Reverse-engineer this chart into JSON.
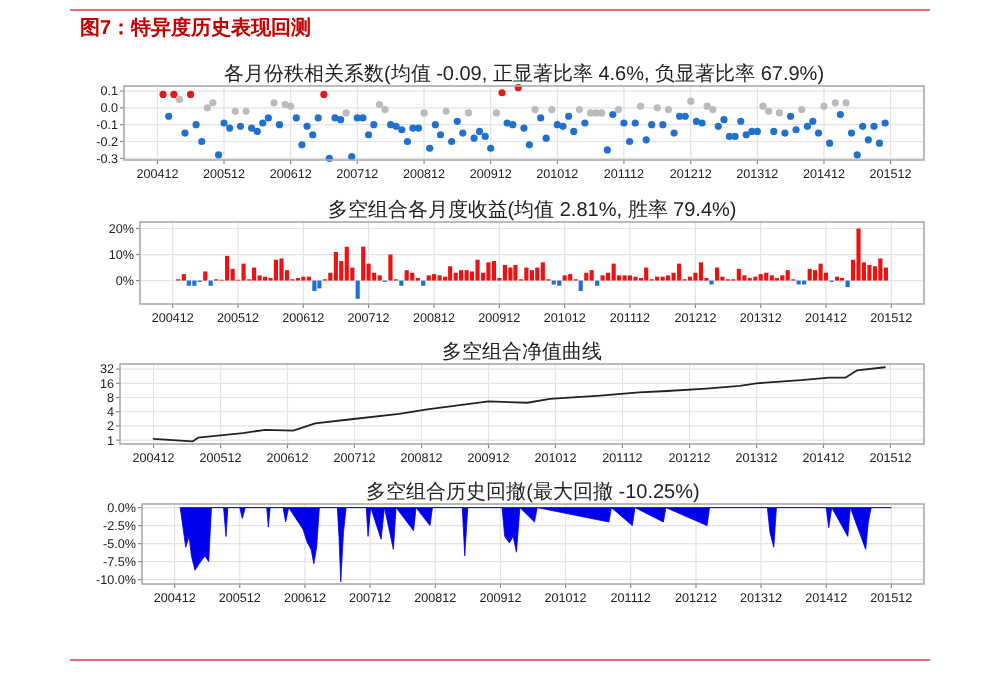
{
  "chart_data": [
    {
      "type": "other",
      "title": "图7：特异度历史表现回测"
    },
    {
      "type": "scatter",
      "title": "各月份秩相关系数(均值 -0.09, 正显著比率 4.6%, 负显著比率 67.9%)",
      "marker": "circle",
      "grid": true,
      "xlim": [
        "2004-06",
        "2016-06"
      ],
      "ylim": [
        -0.31,
        0.13
      ],
      "xticks": [
        {
          "value": "2004-12",
          "label": "200412"
        },
        {
          "value": "2005-12",
          "label": "200512"
        },
        {
          "value": "2006-12",
          "label": "200612"
        },
        {
          "value": "2007-12",
          "label": "200712"
        },
        {
          "value": "2008-12",
          "label": "200812"
        },
        {
          "value": "2009-12",
          "label": "200912"
        },
        {
          "value": "2010-12",
          "label": "201012"
        },
        {
          "value": "2011-12",
          "label": "201112"
        },
        {
          "value": "2012-12",
          "label": "201212"
        },
        {
          "value": "2013-12",
          "label": "201312"
        },
        {
          "value": "2014-12",
          "label": "201412"
        },
        {
          "value": "2015-12",
          "label": "201512"
        }
      ],
      "yticks": [
        0.1,
        {
          "value": 0,
          "label": "0.0"
        },
        -0.1,
        -0.2,
        -0.3
      ],
      "x": [
        "2005-01",
        "2005-02",
        "2005-03",
        "2005-04",
        "2005-05",
        "2005-06",
        "2005-07",
        "2005-08",
        "2005-09",
        "2005-10",
        "2005-11",
        "2005-12",
        "2006-01",
        "2006-02",
        "2006-03",
        "2006-04",
        "2006-05",
        "2006-06",
        "2006-07",
        "2006-08",
        "2006-09",
        "2006-10",
        "2006-11",
        "2006-12",
        "2007-01",
        "2007-02",
        "2007-03",
        "2007-04",
        "2007-05",
        "2007-06",
        "2007-07",
        "2007-08",
        "2007-09",
        "2007-10",
        "2007-11",
        "2007-12",
        "2008-01",
        "2008-02",
        "2008-03",
        "2008-04",
        "2008-05",
        "2008-06",
        "2008-07",
        "2008-08",
        "2008-09",
        "2008-10",
        "2008-11",
        "2008-12",
        "2009-01",
        "2009-02",
        "2009-03",
        "2009-04",
        "2009-05",
        "2009-06",
        "2009-07",
        "2009-08",
        "2009-09",
        "2009-10",
        "2009-11",
        "2009-12",
        "2010-01",
        "2010-02",
        "2010-03",
        "2010-04",
        "2010-05",
        "2010-06",
        "2010-07",
        "2010-08",
        "2010-09",
        "2010-10",
        "2010-11",
        "2010-12",
        "2011-01",
        "2011-02",
        "2011-03",
        "2011-04",
        "2011-05",
        "2011-06",
        "2011-07",
        "2011-08",
        "2011-09",
        "2011-10",
        "2011-11",
        "2011-12",
        "2012-01",
        "2012-02",
        "2012-03",
        "2012-04",
        "2012-05",
        "2012-06",
        "2012-07",
        "2012-08",
        "2012-09",
        "2012-10",
        "2012-11",
        "2012-12",
        "2013-01",
        "2013-02",
        "2013-03",
        "2013-04",
        "2013-05",
        "2013-06",
        "2013-07",
        "2013-08",
        "2013-09",
        "2013-10",
        "2013-11",
        "2013-12",
        "2014-01",
        "2014-02",
        "2014-03",
        "2014-04",
        "2014-05",
        "2014-06",
        "2014-07",
        "2014-08",
        "2014-09",
        "2014-10",
        "2014-11",
        "2014-12",
        "2015-01",
        "2015-02",
        "2015-03",
        "2015-04",
        "2015-05",
        "2015-06",
        "2015-07",
        "2015-08",
        "2015-09",
        "2015-10",
        "2015-11"
      ],
      "values": [
        0.08,
        -0.05,
        0.08,
        0.05,
        -0.15,
        0.08,
        -0.1,
        -0.2,
        0,
        0.03,
        -0.28,
        -0.09,
        -0.12,
        -0.02,
        -0.11,
        -0.02,
        -0.12,
        -0.14,
        -0.09,
        -0.06,
        0.03,
        -0.1,
        0.02,
        0.01,
        -0.06,
        -0.22,
        -0.11,
        -0.16,
        -0.06,
        0.08,
        -0.3,
        -0.06,
        -0.07,
        -0.03,
        -0.29,
        -0.06,
        -0.06,
        -0.16,
        -0.1,
        0.02,
        -0.01,
        -0.1,
        -0.11,
        -0.13,
        -0.2,
        -0.12,
        -0.12,
        -0.03,
        -0.24,
        -0.1,
        -0.16,
        -0.02,
        -0.2,
        -0.08,
        -0.15,
        -0.03,
        -0.18,
        -0.14,
        -0.17,
        -0.24,
        -0.03,
        0.09,
        -0.09,
        -0.1,
        0.12,
        -0.12,
        -0.22,
        -0.01,
        -0.06,
        -0.18,
        -0.01,
        -0.1,
        -0.11,
        -0.05,
        -0.14,
        -0.01,
        -0.09,
        -0.03,
        -0.03,
        -0.03,
        -0.25,
        -0.04,
        -0.01,
        -0.09,
        -0.2,
        -0.09,
        0.01,
        -0.19,
        -0.1,
        0,
        -0.1,
        -0.01,
        -0.15,
        -0.05,
        -0.05,
        0.04,
        -0.08,
        -0.09,
        0.01,
        -0.01,
        -0.11,
        -0.07,
        -0.17,
        -0.17,
        -0.08,
        -0.16,
        -0.14,
        -0.14,
        0.01,
        -0.02,
        -0.14,
        -0.03,
        -0.15,
        -0.05,
        -0.13,
        -0.01,
        -0.11,
        -0.08,
        -0.15,
        0.01,
        -0.21,
        0.03,
        -0.04,
        0.03,
        -0.15,
        -0.28,
        -0.11,
        -0.19,
        -0.11,
        -0.21,
        -0.09
      ],
      "colors": [
        "#e31a1c",
        "#2070d0",
        "#e31a1c",
        "#bbbbbb",
        "#2070d0",
        "#e31a1c",
        "#2070d0",
        "#2070d0",
        "#bbbbbb",
        "#bbbbbb",
        "#2070d0",
        "#2070d0",
        "#2070d0",
        "#bbbbbb",
        "#2070d0",
        "#bbbbbb",
        "#2070d0",
        "#2070d0",
        "#2070d0",
        "#2070d0",
        "#bbbbbb",
        "#2070d0",
        "#bbbbbb",
        "#bbbbbb",
        "#2070d0",
        "#2070d0",
        "#2070d0",
        "#2070d0",
        "#2070d0",
        "#e31a1c",
        "#2070d0",
        "#2070d0",
        "#2070d0",
        "#bbbbbb",
        "#2070d0",
        "#2070d0",
        "#2070d0",
        "#2070d0",
        "#2070d0",
        "#bbbbbb",
        "#bbbbbb",
        "#2070d0",
        "#2070d0",
        "#2070d0",
        "#2070d0",
        "#2070d0",
        "#2070d0",
        "#bbbbbb",
        "#2070d0",
        "#2070d0",
        "#2070d0",
        "#bbbbbb",
        "#2070d0",
        "#2070d0",
        "#2070d0",
        "#bbbbbb",
        "#2070d0",
        "#2070d0",
        "#2070d0",
        "#2070d0",
        "#bbbbbb",
        "#e31a1c",
        "#2070d0",
        "#2070d0",
        "#e31a1c",
        "#2070d0",
        "#2070d0",
        "#bbbbbb",
        "#2070d0",
        "#2070d0",
        "#bbbbbb",
        "#2070d0",
        "#2070d0",
        "#2070d0",
        "#2070d0",
        "#bbbbbb",
        "#2070d0",
        "#bbbbbb",
        "#bbbbbb",
        "#bbbbbb",
        "#2070d0",
        "#2070d0",
        "#bbbbbb",
        "#2070d0",
        "#2070d0",
        "#2070d0",
        "#bbbbbb",
        "#2070d0",
        "#2070d0",
        "#bbbbbb",
        "#2070d0",
        "#bbbbbb",
        "#2070d0",
        "#2070d0",
        "#2070d0",
        "#bbbbbb",
        "#2070d0",
        "#2070d0",
        "#bbbbbb",
        "#bbbbbb",
        "#2070d0",
        "#2070d0",
        "#2070d0",
        "#2070d0",
        "#2070d0",
        "#2070d0",
        "#2070d0",
        "#2070d0",
        "#bbbbbb",
        "#bbbbbb",
        "#2070d0",
        "#bbbbbb",
        "#2070d0",
        "#2070d0",
        "#2070d0",
        "#bbbbbb",
        "#2070d0",
        "#2070d0",
        "#2070d0",
        "#bbbbbb",
        "#2070d0",
        "#bbbbbb",
        "#2070d0",
        "#bbbbbb",
        "#2070d0",
        "#2070d0",
        "#2070d0",
        "#2070d0",
        "#2070d0",
        "#2070d0",
        "#2070d0"
      ]
    },
    {
      "type": "bar",
      "title": "多空组合各月度收益(均值 2.81%, 胜率 79.4%)",
      "grid": true,
      "xlim": [
        "2004-06",
        "2016-06"
      ],
      "ylim": [
        -9,
        22.5
      ],
      "xticks": [
        {
          "value": "2004-12",
          "label": "200412"
        },
        {
          "value": "2005-12",
          "label": "200512"
        },
        {
          "value": "2006-12",
          "label": "200612"
        },
        {
          "value": "2007-12",
          "label": "200712"
        },
        {
          "value": "2008-12",
          "label": "200812"
        },
        {
          "value": "2009-12",
          "label": "200912"
        },
        {
          "value": "2010-12",
          "label": "201012"
        },
        {
          "value": "2011-12",
          "label": "201112"
        },
        {
          "value": "2012-12",
          "label": "201212"
        },
        {
          "value": "2013-12",
          "label": "201312"
        },
        {
          "value": "2014-12",
          "label": "201412"
        },
        {
          "value": "2015-12",
          "label": "201512"
        }
      ],
      "yticks": [
        {
          "value": 0,
          "label": "0%"
        },
        {
          "value": 10,
          "label": "10%"
        },
        {
          "value": 20,
          "label": "20%"
        }
      ],
      "x": [
        "2005-01",
        "2005-02",
        "2005-03",
        "2005-04",
        "2005-05",
        "2005-06",
        "2005-07",
        "2005-08",
        "2005-09",
        "2005-10",
        "2005-11",
        "2005-12",
        "2006-01",
        "2006-02",
        "2006-03",
        "2006-04",
        "2006-05",
        "2006-06",
        "2006-07",
        "2006-08",
        "2006-09",
        "2006-10",
        "2006-11",
        "2006-12",
        "2007-01",
        "2007-02",
        "2007-03",
        "2007-04",
        "2007-05",
        "2007-06",
        "2007-07",
        "2007-08",
        "2007-09",
        "2007-10",
        "2007-11",
        "2007-12",
        "2008-01",
        "2008-02",
        "2008-03",
        "2008-04",
        "2008-05",
        "2008-06",
        "2008-07",
        "2008-08",
        "2008-09",
        "2008-10",
        "2008-11",
        "2008-12",
        "2009-01",
        "2009-02",
        "2009-03",
        "2009-04",
        "2009-05",
        "2009-06",
        "2009-07",
        "2009-08",
        "2009-09",
        "2009-10",
        "2009-11",
        "2009-12",
        "2010-01",
        "2010-02",
        "2010-03",
        "2010-04",
        "2010-05",
        "2010-06",
        "2010-07",
        "2010-08",
        "2010-09",
        "2010-10",
        "2010-11",
        "2010-12",
        "2011-01",
        "2011-02",
        "2011-03",
        "2011-04",
        "2011-05",
        "2011-06",
        "2011-07",
        "2011-08",
        "2011-09",
        "2011-10",
        "2011-11",
        "2011-12",
        "2012-01",
        "2012-02",
        "2012-03",
        "2012-04",
        "2012-05",
        "2012-06",
        "2012-07",
        "2012-08",
        "2012-09",
        "2012-10",
        "2012-11",
        "2012-12",
        "2013-01",
        "2013-02",
        "2013-03",
        "2013-04",
        "2013-05",
        "2013-06",
        "2013-07",
        "2013-08",
        "2013-09",
        "2013-10",
        "2013-11",
        "2013-12",
        "2014-01",
        "2014-02",
        "2014-03",
        "2014-04",
        "2014-05",
        "2014-06",
        "2014-07",
        "2014-08",
        "2014-09",
        "2014-10",
        "2014-11",
        "2014-12",
        "2015-01",
        "2015-02",
        "2015-03",
        "2015-04",
        "2015-05",
        "2015-06",
        "2015-07",
        "2015-08",
        "2015-09",
        "2015-10",
        "2015-11"
      ],
      "values": [
        0.5,
        2.5,
        -2,
        -2,
        -0.5,
        3.5,
        -2,
        0.5,
        0.3,
        9.5,
        4.5,
        0.3,
        6.5,
        0.5,
        5,
        2,
        1.5,
        1,
        8,
        8.5,
        4,
        0.5,
        1,
        1.5,
        1.5,
        -4,
        -3,
        0.5,
        3,
        11,
        7.5,
        13,
        5,
        -7,
        13,
        6.5,
        3,
        2,
        -0.5,
        10,
        0.5,
        -2,
        4,
        3,
        1,
        -2,
        2,
        2.5,
        2,
        1.5,
        5.5,
        3,
        4,
        4,
        3.5,
        8,
        3,
        7,
        7.5,
        1,
        6,
        5,
        6,
        0.5,
        5,
        4,
        5,
        7,
        0.5,
        -1.5,
        -2,
        2,
        2.5,
        0.5,
        -4,
        3,
        4,
        -2,
        2,
        3,
        6.5,
        2,
        2,
        2,
        1.5,
        1,
        5,
        0.5,
        1.5,
        1.5,
        2,
        3,
        6.5,
        0.5,
        1.5,
        3,
        7,
        1,
        -1.5,
        5,
        1.5,
        0.5,
        0.5,
        4.5,
        2,
        1,
        1.5,
        2.5,
        3,
        2,
        1,
        2,
        4,
        0.5,
        -1.5,
        -1.5,
        4.5,
        4,
        6.5,
        3,
        -0.5,
        1.5,
        1,
        -2.5,
        8,
        20,
        7,
        6,
        5.5,
        8.5,
        5
      ],
      "colors": [
        "#ee1111",
        "#ee1111",
        "#1f6fd6",
        "#1f6fd6",
        "#1f6fd6",
        "#ee1111",
        "#1f6fd6",
        "#ee1111",
        "#ee1111",
        "#ee1111",
        "#ee1111",
        "#ee1111",
        "#ee1111",
        "#ee1111",
        "#ee1111",
        "#ee1111",
        "#ee1111",
        "#ee1111",
        "#ee1111",
        "#ee1111",
        "#ee1111",
        "#ee1111",
        "#ee1111",
        "#ee1111",
        "#ee1111",
        "#1f6fd6",
        "#1f6fd6",
        "#ee1111",
        "#ee1111",
        "#ee1111",
        "#ee1111",
        "#ee1111",
        "#ee1111",
        "#1f6fd6",
        "#ee1111",
        "#ee1111",
        "#ee1111",
        "#ee1111",
        "#1f6fd6",
        "#ee1111",
        "#ee1111",
        "#1f6fd6",
        "#ee1111",
        "#ee1111",
        "#ee1111",
        "#1f6fd6",
        "#ee1111",
        "#ee1111",
        "#ee1111",
        "#ee1111",
        "#ee1111",
        "#ee1111",
        "#ee1111",
        "#ee1111",
        "#ee1111",
        "#ee1111",
        "#ee1111",
        "#ee1111",
        "#ee1111",
        "#ee1111",
        "#ee1111",
        "#ee1111",
        "#ee1111",
        "#ee1111",
        "#ee1111",
        "#ee1111",
        "#ee1111",
        "#ee1111",
        "#ee1111",
        "#1f6fd6",
        "#1f6fd6",
        "#ee1111",
        "#ee1111",
        "#ee1111",
        "#1f6fd6",
        "#ee1111",
        "#ee1111",
        "#1f6fd6",
        "#ee1111",
        "#ee1111",
        "#ee1111",
        "#ee1111",
        "#ee1111",
        "#ee1111",
        "#ee1111",
        "#ee1111",
        "#ee1111",
        "#ee1111",
        "#ee1111",
        "#ee1111",
        "#ee1111",
        "#ee1111",
        "#ee1111",
        "#ee1111",
        "#ee1111",
        "#ee1111",
        "#ee1111",
        "#ee1111",
        "#1f6fd6",
        "#ee1111",
        "#ee1111",
        "#ee1111",
        "#ee1111",
        "#ee1111",
        "#ee1111",
        "#ee1111",
        "#ee1111",
        "#ee1111",
        "#ee1111",
        "#ee1111",
        "#ee1111",
        "#ee1111",
        "#ee1111",
        "#ee1111",
        "#1f6fd6",
        "#1f6fd6",
        "#ee1111",
        "#ee1111",
        "#ee1111",
        "#ee1111",
        "#1f6fd6",
        "#ee1111",
        "#ee1111",
        "#1f6fd6",
        "#ee1111",
        "#ee1111",
        "#ee1111",
        "#ee1111",
        "#ee1111",
        "#ee1111",
        "#ee1111"
      ]
    },
    {
      "type": "line",
      "title": "多空组合净值曲线",
      "grid": true,
      "log": "y",
      "color": "#222222",
      "xlim": [
        "2004-06",
        "2016-06"
      ],
      "ylim": [
        0.83,
        41
      ],
      "xticks": [
        {
          "value": "2004-12",
          "label": "200412"
        },
        {
          "value": "2005-12",
          "label": "200512"
        },
        {
          "value": "2006-12",
          "label": "200612"
        },
        {
          "value": "2007-12",
          "label": "200712"
        },
        {
          "value": "2008-12",
          "label": "200812"
        },
        {
          "value": "2009-12",
          "label": "200912"
        },
        {
          "value": "2010-12",
          "label": "201012"
        },
        {
          "value": "2011-12",
          "label": "201112"
        },
        {
          "value": "2012-12",
          "label": "201212"
        },
        {
          "value": "2013-12",
          "label": "201312"
        },
        {
          "value": "2014-12",
          "label": "201412"
        },
        {
          "value": "2015-12",
          "label": "201512"
        }
      ],
      "yticks": [
        1,
        2,
        4,
        8,
        16,
        32
      ],
      "x": [
        "2004-12",
        "2005-07",
        "2005-08",
        "2006-04",
        "2006-08",
        "2007-01",
        "2007-05",
        "2007-11",
        "2008-08",
        "2009-01",
        "2009-12",
        "2010-07",
        "2010-11",
        "2011-08",
        "2012-03",
        "2012-08",
        "2013-03",
        "2013-09",
        "2013-12",
        "2014-08",
        "2015-01",
        "2015-04",
        "2015-06",
        "2015-11"
      ],
      "values": [
        1.07,
        0.94,
        1.13,
        1.41,
        1.65,
        1.6,
        2.27,
        2.74,
        3.6,
        4.5,
        6.6,
        6.2,
        7.5,
        8.8,
        10.3,
        11,
        12.4,
        14.1,
        16,
        18.7,
        21.2,
        21.2,
        30,
        35
      ]
    },
    {
      "type": "area",
      "title": "多空组合历史回撤(最大回撤 -10.25%)",
      "grid": true,
      "color": "#0000ee",
      "xlim": [
        "2004-06",
        "2016-06"
      ],
      "ylim": [
        -10.6,
        0.5
      ],
      "xticks": [
        {
          "value": "2004-12",
          "label": "200412"
        },
        {
          "value": "2005-12",
          "label": "200512"
        },
        {
          "value": "2006-12",
          "label": "200612"
        },
        {
          "value": "2007-12",
          "label": "200712"
        },
        {
          "value": "2008-12",
          "label": "200812"
        },
        {
          "value": "2009-12",
          "label": "200912"
        },
        {
          "value": "2010-12",
          "label": "201012"
        },
        {
          "value": "2011-12",
          "label": "201112"
        },
        {
          "value": "2012-12",
          "label": "201212"
        },
        {
          "value": "2013-12",
          "label": "201312"
        },
        {
          "value": "2014-12",
          "label": "201412"
        },
        {
          "value": "2015-12",
          "label": "201512"
        }
      ],
      "yticks": [
        {
          "value": 0,
          "label": "0.0%"
        },
        {
          "value": -2.5,
          "label": "-2.5%"
        },
        {
          "value": -5,
          "label": "-5.0%"
        },
        {
          "value": -7.5,
          "label": "-7.5%"
        },
        {
          "value": -10,
          "label": "-10.0%"
        }
      ],
      "x": [
        "2005-01-01",
        "2005-02-01",
        "2005-02-20",
        "2005-03-05",
        "2005-03-25",
        "2005-04-20",
        "2005-05-20",
        "2005-06-10",
        "2005-06-25",
        "2005-09-01",
        "2005-09-15",
        "2005-09-25",
        "2005-12-01",
        "2005-12-15",
        "2006-01-01",
        "2006-05-01",
        "2006-05-10",
        "2006-05-20",
        "2006-08-01",
        "2006-08-15",
        "2006-09-01",
        "2006-11-20",
        "2006-12-15",
        "2007-01-05",
        "2007-01-20",
        "2007-02-05",
        "2007-02-20",
        "2007-06-01",
        "2007-06-10",
        "2007-06-20",
        "2007-07-05",
        "2007-07-20",
        "2007-11-10",
        "2007-11-20",
        "2007-12-05",
        "2008-02-01",
        "2008-02-20",
        "2008-04-10",
        "2008-04-25",
        "2008-08-01",
        "2008-08-15",
        "2008-11-01",
        "2008-11-15",
        "2009-05-01",
        "2009-05-15",
        "2009-06-01",
        "2009-12-10",
        "2009-12-25",
        "2010-01-20",
        "2010-02-10",
        "2010-03-01",
        "2010-03-20",
        "2010-06-10",
        "2010-06-25",
        "2011-08-01",
        "2011-08-15",
        "2011-12-10",
        "2011-12-25",
        "2012-06-01",
        "2012-06-15",
        "2013-02-01",
        "2013-02-15",
        "2014-01-05",
        "2014-01-20",
        "2014-02-10",
        "2014-02-25",
        "2014-12-01",
        "2014-12-15",
        "2015-01-01",
        "2015-04-01",
        "2015-04-15",
        "2015-07-10",
        "2015-07-25",
        "2015-08-10",
        "2015-11-30"
      ],
      "values": [
        0,
        -5.5,
        -4,
        -6.7,
        -8.7,
        -7.7,
        -6.7,
        -7.5,
        0,
        0,
        -4,
        0,
        0,
        -1.5,
        0,
        0,
        -2.7,
        0,
        0,
        -2,
        0,
        -3,
        -4.9,
        -5.8,
        -7.8,
        -5.5,
        0,
        0,
        -4,
        -10.3,
        -3.5,
        0,
        0,
        -4,
        0,
        -4.4,
        0,
        -5.8,
        0,
        -3.2,
        0,
        -2.5,
        0,
        0,
        -6.7,
        0,
        0,
        -4,
        -4.9,
        -4,
        -6.2,
        0,
        -2,
        0,
        -2,
        0,
        -2.5,
        0,
        -2,
        0,
        -2.5,
        0,
        0,
        -3.5,
        -5.5,
        0,
        0,
        -2.8,
        0,
        -4,
        0,
        -5.8,
        -2,
        0,
        0
      ]
    }
  ]
}
